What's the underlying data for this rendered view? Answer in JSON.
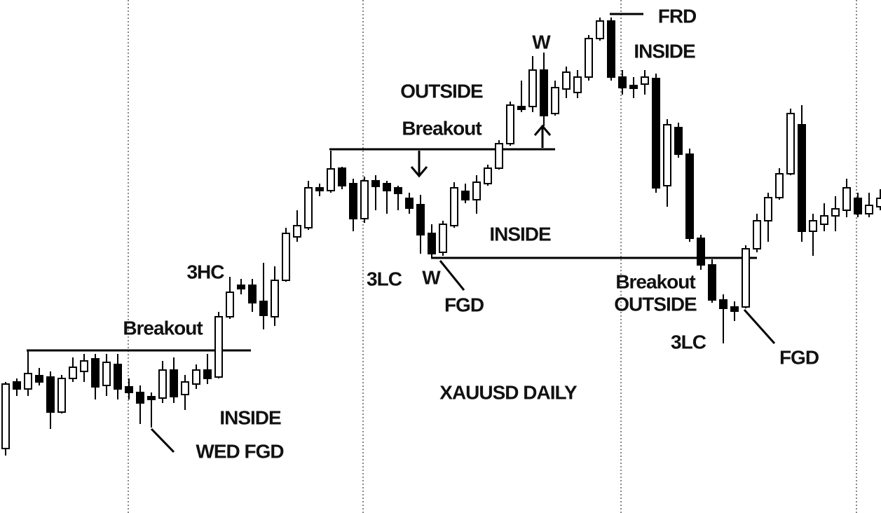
{
  "chart_data": {
    "type": "candlestick",
    "title": "XAUUSD DAILY",
    "annotations": [
      "FRD",
      "W",
      "INSIDE",
      "OUTSIDE",
      "Breakout",
      "3HC",
      "3LC",
      "W",
      "FGD",
      "INSIDE",
      "Breakout",
      "OUTSIDE",
      "3LC",
      "FGD",
      "Breakout",
      "INSIDE",
      "WED FGD"
    ],
    "categories": [
      null,
      null,
      null,
      null,
      null,
      null,
      null,
      null,
      null,
      null,
      null,
      null,
      null,
      null,
      null,
      null,
      null,
      null,
      null,
      null,
      null,
      null,
      null,
      null,
      null,
      null,
      null,
      null,
      null,
      null,
      null,
      null,
      null,
      null,
      null,
      null,
      null,
      null,
      null,
      null,
      null,
      null,
      null,
      null,
      null,
      null,
      null,
      null,
      null,
      null,
      null,
      null,
      null,
      null,
      null,
      null,
      null,
      null,
      null,
      null,
      null,
      null,
      null,
      null,
      null,
      null,
      null,
      null,
      null,
      null,
      null,
      null,
      null,
      null,
      null,
      null,
      null,
      null,
      null
    ],
    "open": [
      92,
      187,
      177,
      196,
      194,
      144,
      192,
      202,
      220,
      182,
      212,
      180,
      172,
      166,
      164,
      204,
      169,
      184,
      204,
      194,
      280,
      325,
      325,
      302,
      280,
      332,
      394,
      407,
      464,
      460,
      492,
      470,
      420,
      474,
      470,
      464,
      449,
      440,
      399,
      372,
      410,
      459,
      447,
      470,
      492,
      527,
      580,
      580,
      632,
      570,
      605,
      600,
      622,
      677,
      702,
      622,
      610,
      612,
      620,
      467,
      550,
      512,
      392,
      354,
      304,
      294,
      294,
      377,
      417,
      450,
      484,
      554,
      402,
      412,
      424,
      432,
      449,
      427,
      437
    ],
    "high": [
      187,
      192,
      232,
      207,
      202,
      197,
      222,
      227,
      227,
      227,
      227,
      192,
      182,
      172,
      217,
      222,
      197,
      212,
      227,
      287,
      337,
      334,
      334,
      357,
      352,
      407,
      432,
      474,
      470,
      517,
      494,
      477,
      480,
      482,
      474,
      467,
      457,
      454,
      412,
      417,
      472,
      470,
      482,
      497,
      532,
      587,
      617,
      652,
      657,
      617,
      637,
      632,
      682,
      707,
      707,
      632,
      622,
      632,
      627,
      562,
      557,
      520,
      397,
      362,
      312,
      302,
      382,
      427,
      457,
      492,
      577,
      582,
      427,
      442,
      452,
      477,
      457,
      457,
      462
    ],
    "low": [
      82,
      167,
      167,
      182,
      120,
      142,
      187,
      187,
      162,
      167,
      162,
      162,
      127,
      122,
      157,
      157,
      147,
      177,
      184,
      192,
      277,
      312,
      287,
      262,
      267,
      330,
      387,
      404,
      452,
      457,
      462,
      402,
      414,
      432,
      427,
      432,
      427,
      370,
      364,
      367,
      407,
      442,
      427,
      467,
      490,
      524,
      572,
      572,
      552,
      567,
      592,
      592,
      617,
      674,
      617,
      597,
      592,
      597,
      457,
      437,
      507,
      387,
      347,
      300,
      242,
      274,
      292,
      372,
      387,
      447,
      482,
      387,
      367,
      402,
      402,
      422,
      422,
      422,
      432
    ],
    "close": [
      184,
      177,
      199,
      187,
      144,
      192,
      208,
      217,
      180,
      215,
      177,
      172,
      157,
      162,
      204,
      166,
      187,
      204,
      192,
      280,
      315,
      320,
      300,
      282,
      332,
      399,
      410,
      464,
      460,
      491,
      467,
      420,
      474,
      466,
      460,
      456,
      435,
      397,
      370,
      412,
      464,
      447,
      472,
      492,
      527,
      582,
      576,
      632,
      567,
      607,
      629,
      622,
      677,
      702,
      622,
      607,
      606,
      622,
      464,
      554,
      512,
      392,
      354,
      304,
      292,
      288,
      377,
      417,
      450,
      484,
      570,
      402,
      417,
      424,
      434,
      464,
      427,
      439,
      449
    ],
    "ylim": [
      0,
      732
    ]
  }
}
